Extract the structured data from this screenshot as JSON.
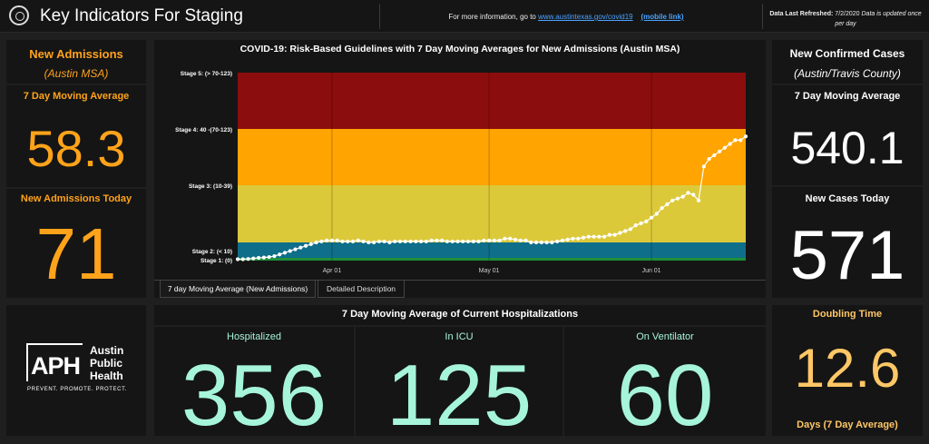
{
  "header": {
    "title": "Key Indicators For Staging",
    "info_prefix": "For more information, go to",
    "info_link": "www.austintexas.gov/covid19",
    "mobile_link": "(mobile link)",
    "refresh_label": "Data Last Refreshed:",
    "refresh_value": "7/2/2020",
    "refresh_note": "Data is updated once per day"
  },
  "left": {
    "title": "New Admissions",
    "subtitle": "(Austin MSA)",
    "avg_label": "7 Day Moving Average",
    "avg_value": "58.3",
    "today_label": "New Admissions Today",
    "today_value": "71"
  },
  "right": {
    "title": "New Confirmed Cases",
    "subtitle": "(Austin/Travis County)",
    "avg_label": "7 Day Moving Average",
    "avg_value": "540.1",
    "today_label": "New Cases Today",
    "today_value": "571",
    "doubling_label": "Doubling Time",
    "doubling_value": "12.6",
    "doubling_unit": "Days (7 Day Average)"
  },
  "logo": {
    "mark": "APH",
    "line1": "Austin",
    "line2": "Public",
    "line3": "Health",
    "tagline": "PREVENT. PROMOTE. PROTECT."
  },
  "chart": {
    "title": "COVID-19: Risk-Based Guidelines with 7 Day Moving Averages for New Admissions (Austin MSA)",
    "tabs": [
      "7 day Moving Average (New Admissions)",
      "Detailed Description"
    ]
  },
  "chart_data": {
    "type": "line",
    "title": "COVID-19: Risk-Based Guidelines with 7 Day Moving Averages for New Admissions (Austin MSA)",
    "x_tick_labels": [
      "Apr 01",
      "May 01",
      "Jun 01"
    ],
    "x_tick_day_index": [
      18,
      48,
      79
    ],
    "stage_labels": [
      "Stage 5: (> 70-123)",
      "Stage 4: 40 -(70-123)",
      "Stage 3: (10-39)",
      "Stage 2: (< 10)",
      "Stage 1: (0)"
    ],
    "stage_ticks": [
      123,
      70,
      40,
      10,
      0
    ],
    "stage_colors": [
      "#8b0d0d",
      "#ffa400",
      "#dcc93a",
      "#0f6e8a",
      "#1f8f3a"
    ],
    "ylim": [
      0,
      123
    ],
    "series": [
      {
        "values": [
          0.5,
          0.5,
          0.6,
          0.8,
          1.0,
          1.2,
          1.5,
          2.0,
          3.0,
          4.0,
          5.0,
          6.0,
          7.0,
          8.0,
          9.0,
          10.0,
          10.5,
          11.0,
          11.0,
          11.0,
          10.5,
          10.5,
          10.5,
          11.0,
          10.5,
          10.0,
          10.0,
          10.5,
          10.5,
          10.0,
          10.5,
          10.5,
          10.5,
          10.5,
          10.5,
          10.5,
          10.5,
          11.0,
          11.0,
          11.0,
          10.5,
          10.5,
          10.5,
          10.5,
          10.5,
          10.5,
          10.5,
          11.0,
          11.0,
          11.0,
          11.0,
          12.0,
          12.0,
          11.5,
          11.0,
          11.0,
          10.0,
          10.0,
          10.0,
          10.0,
          10.0,
          10.5,
          11.0,
          11.5,
          12.0,
          12.0,
          12.5,
          13.0,
          13.0,
          13.0,
          13.0,
          14.0,
          14.0,
          15.0,
          16.0,
          17.0,
          19.0,
          20.0,
          21.0,
          23.0,
          25.0,
          28.0,
          30.0,
          32.0,
          33.0,
          34.0,
          36.0,
          35.0,
          32.0,
          50.0,
          54.0,
          56.0,
          58.0,
          60.0,
          62.0,
          64.0,
          64.0,
          66.0
        ]
      }
    ]
  },
  "hosp": {
    "title": "7 Day Moving Average of Current Hospitalizations",
    "hospitalized_label": "Hospitalized",
    "hospitalized_value": "356",
    "icu_label": "In ICU",
    "icu_value": "125",
    "vent_label": "On Ventilator",
    "vent_value": "60"
  }
}
